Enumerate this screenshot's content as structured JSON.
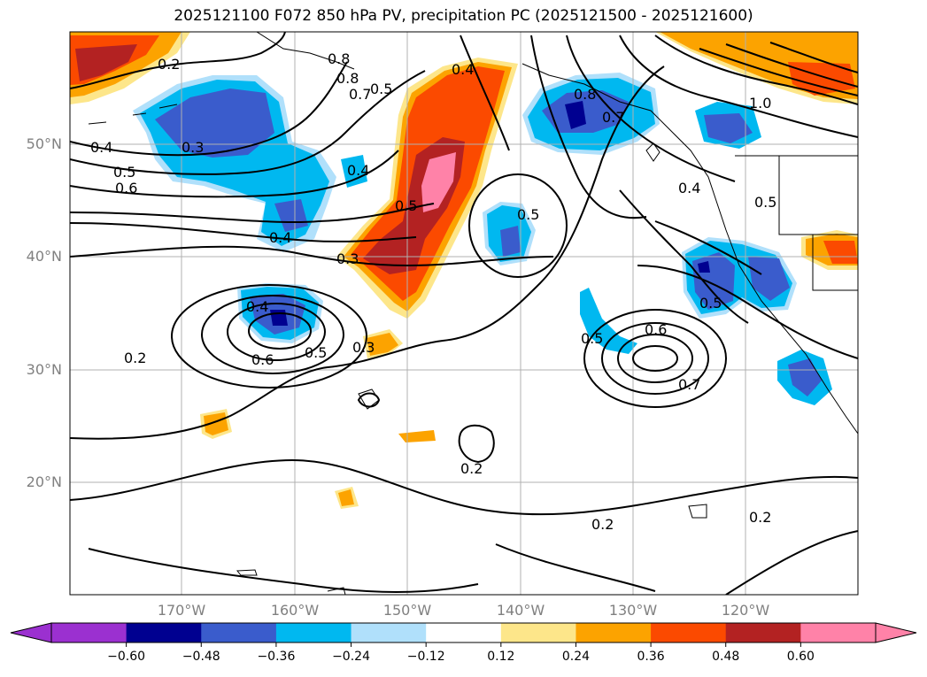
{
  "title": "2025121100 F072 850 hPa PV, precipitation PC (2025121500 - 2025121600)",
  "lat_labels": [
    "50°N",
    "40°N",
    "30°N",
    "20°N"
  ],
  "lon_labels": [
    "170°W",
    "160°W",
    "150°W",
    "140°W",
    "130°W",
    "120°W"
  ],
  "contour_labels": [
    "0.2",
    "0.3",
    "0.4",
    "0.5",
    "0.6",
    "0.7",
    "0.8",
    "1.0"
  ],
  "colorbar": {
    "ticks": [
      "−0.60",
      "−0.48",
      "−0.36",
      "−0.24",
      "−0.12",
      "0.12",
      "0.24",
      "0.36",
      "0.48",
      "0.60"
    ],
    "colors": [
      "#9b30d0",
      "#000090",
      "#3a5ccc",
      "#00b8f0",
      "#b0e0fb",
      "#ffffff",
      "#fde68a",
      "#fca300",
      "#fb4a00",
      "#b32222",
      "#ff82a8",
      "#ff82a8"
    ]
  },
  "colors": {
    "pink": "#ff82a8",
    "darkred": "#b32222",
    "orangered": "#fb4a00",
    "orange": "#fca300",
    "lightyellow": "#fde68a",
    "lightblue": "#b0e0fb",
    "skyblue": "#00b8f0",
    "royalblue": "#3a5ccc",
    "navy": "#000090"
  }
}
